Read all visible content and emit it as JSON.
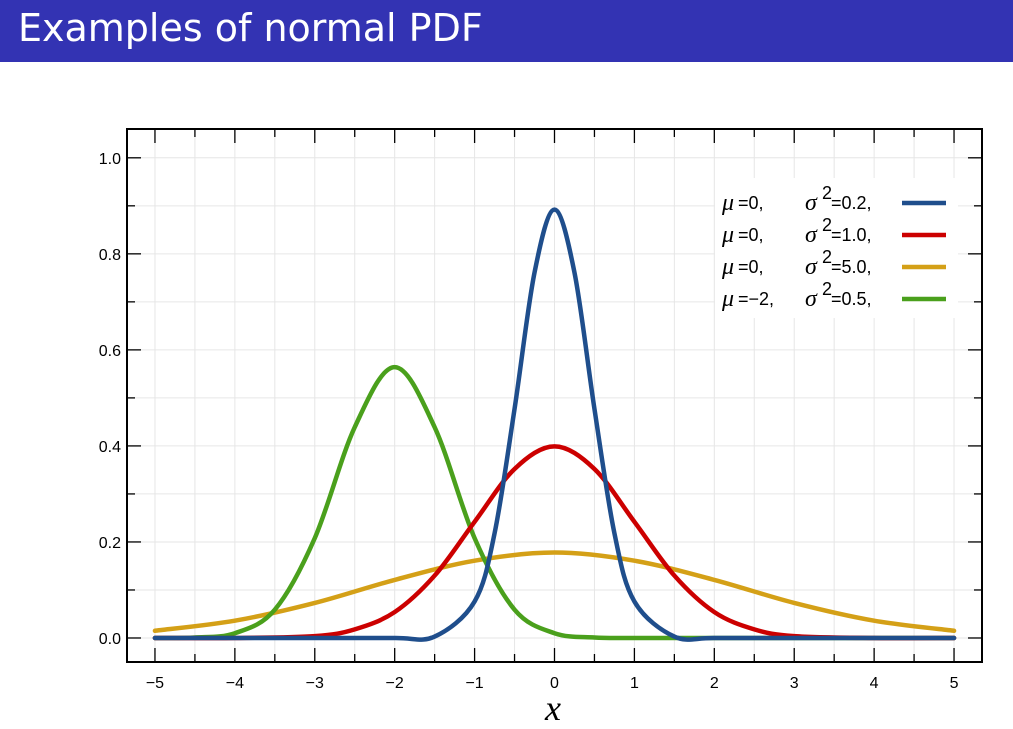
{
  "slide": {
    "title": "Examples of normal PDF"
  },
  "chart_data": {
    "type": "line",
    "title": "",
    "xlabel": "x",
    "ylabel": "",
    "xlim": [
      -5.35,
      5.35
    ],
    "ylim": [
      -0.05,
      1.06
    ],
    "x_ticks": [
      -5,
      -4,
      -3,
      -2,
      -1,
      0,
      1,
      2,
      3,
      4,
      5
    ],
    "x_tick_labels": [
      "−5",
      "−4",
      "−3",
      "−2",
      "−1",
      "0",
      "1",
      "2",
      "3",
      "4",
      "5"
    ],
    "y_ticks": [
      0.0,
      0.2,
      0.4,
      0.6,
      0.8,
      1.0
    ],
    "y_tick_labels": [
      "0.0",
      "0.2",
      "0.4",
      "0.6",
      "0.8",
      "1.0"
    ],
    "grid": true,
    "legend_position": "top-right",
    "series": [
      {
        "mu_label": "μ",
        "mu_value": "=0,",
        "sigma_label": "σ",
        "sigma_sup": "2",
        "sigma_value": "=0.2,",
        "mu": 0,
        "variance": 0.2,
        "color": "#1f4e8c",
        "x": [
          -5,
          -4,
          -3,
          -2,
          -1.5,
          -1,
          -0.75,
          -0.5,
          -0.25,
          0,
          0.25,
          0.5,
          0.75,
          1,
          1.5,
          2,
          3,
          4,
          5
        ],
        "y": [
          0,
          0,
          0,
          0,
          0.003,
          0.076,
          0.218,
          0.477,
          0.761,
          0.892,
          0.761,
          0.477,
          0.218,
          0.076,
          0.003,
          0,
          0,
          0,
          0
        ]
      },
      {
        "mu_label": "μ",
        "mu_value": "=0,",
        "sigma_label": "σ",
        "sigma_sup": "2",
        "sigma_value": "=1.0,",
        "mu": 0,
        "variance": 1.0,
        "color": "#cc0000",
        "x": [
          -5,
          -4,
          -3,
          -2.5,
          -2,
          -1.5,
          -1,
          -0.5,
          0,
          0.5,
          1,
          1.5,
          2,
          2.5,
          3,
          4,
          5
        ],
        "y": [
          0,
          0,
          0.004,
          0.018,
          0.054,
          0.13,
          0.242,
          0.352,
          0.399,
          0.352,
          0.242,
          0.13,
          0.054,
          0.018,
          0.004,
          0,
          0
        ]
      },
      {
        "mu_label": "μ",
        "mu_value": "=0,",
        "sigma_label": "σ",
        "sigma_sup": "2",
        "sigma_value": "=5.0,",
        "mu": 0,
        "variance": 5.0,
        "color": "#d4a017",
        "x": [
          -5,
          -4,
          -3,
          -2,
          -1,
          0,
          1,
          2,
          3,
          4,
          5
        ],
        "y": [
          0.015,
          0.036,
          0.073,
          0.121,
          0.161,
          0.178,
          0.161,
          0.121,
          0.073,
          0.036,
          0.015
        ]
      },
      {
        "mu_label": "μ",
        "mu_value": "=−2,",
        "sigma_label": "σ",
        "sigma_sup": "2",
        "sigma_value": "=0.5,",
        "mu": -2,
        "variance": 0.5,
        "color": "#4aa01c",
        "x": [
          -5,
          -4.5,
          -4,
          -3.5,
          -3,
          -2.5,
          -2,
          -1.5,
          -1,
          -0.5,
          0,
          0.5,
          1,
          2,
          3,
          4,
          5
        ],
        "y": [
          0,
          0.001,
          0.01,
          0.059,
          0.208,
          0.439,
          0.564,
          0.439,
          0.208,
          0.059,
          0.01,
          0.001,
          0,
          0,
          0,
          0,
          0
        ]
      }
    ]
  }
}
